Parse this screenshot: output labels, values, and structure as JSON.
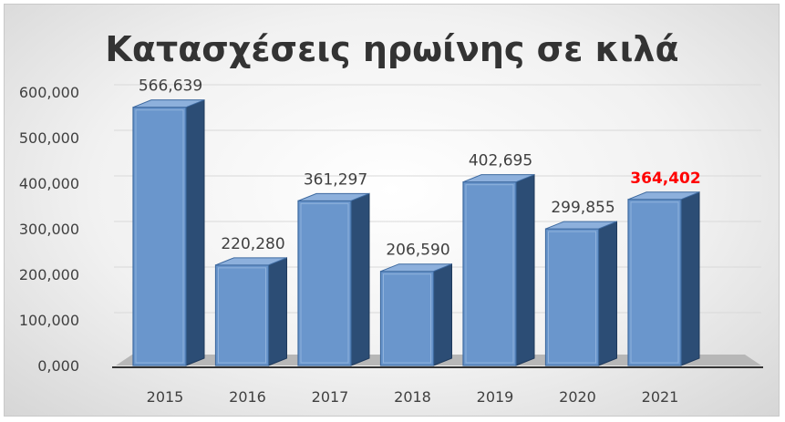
{
  "chart_data": {
    "type": "bar",
    "title": "Κατασχέσεις ηρωίνης σε κιλά",
    "categories": [
      "2015",
      "2016",
      "2017",
      "2018",
      "2019",
      "2020",
      "2021"
    ],
    "values": [
      566639,
      220280,
      361297,
      206590,
      402695,
      299855,
      364402
    ],
    "value_labels": [
      "566,639",
      "220,280",
      "361,297",
      "206,590",
      "402,695",
      "299,855",
      "364,402"
    ],
    "highlight_index": 6,
    "highlight_color": "#ff0000",
    "bar_color": "#4f81bd",
    "ylim": [
      0,
      600000
    ],
    "yticks": [
      0,
      100000,
      200000,
      300000,
      400000,
      500000,
      600000
    ],
    "ytick_labels": [
      "0,000",
      "100,000",
      "200,000",
      "300,000",
      "400,000",
      "500,000",
      "600,000"
    ],
    "grid": true,
    "legend": "none",
    "style": "3d-column"
  }
}
